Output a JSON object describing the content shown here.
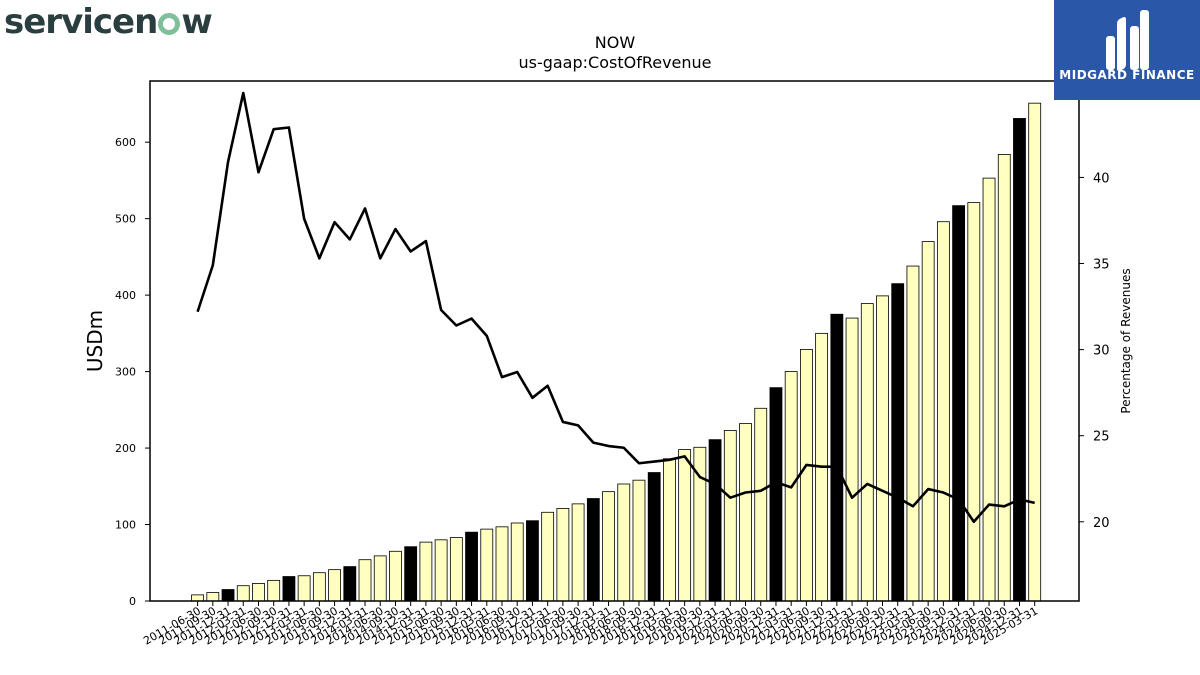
{
  "branding": {
    "logo_left": "servicenow",
    "logo_right": "MIDGARD FINANCE"
  },
  "chart_data": {
    "type": "bar",
    "title": "NOW",
    "subtitle": "us-gaap:CostOfRevenue",
    "ylabel": "USDm",
    "y2label": "Percentage of Revenues",
    "ylim": [
      0,
      680
    ],
    "y2lim": [
      15.4,
      45.6
    ],
    "yticks": [
      0,
      100,
      200,
      300,
      400,
      500,
      600
    ],
    "y2ticks": [
      20,
      25,
      30,
      35,
      40,
      45
    ],
    "grid": false,
    "colors": {
      "quarter_bar": "#ffffc0",
      "fiscal_year_bar": "#000000",
      "bar_edge": "#000000",
      "ratio_line": "#000000"
    },
    "categories": [
      "2011-06-30",
      "2011-09-30",
      "2011-12-31",
      "2012-03-31",
      "2012-06-30",
      "2012-09-30",
      "2012-12-31",
      "2013-03-31",
      "2013-06-30",
      "2013-09-30",
      "2013-12-31",
      "2014-03-31",
      "2014-06-30",
      "2014-09-30",
      "2014-12-31",
      "2015-03-31",
      "2015-06-30",
      "2015-09-30",
      "2015-12-31",
      "2016-03-31",
      "2016-06-30",
      "2016-09-30",
      "2016-12-31",
      "2017-03-31",
      "2017-06-30",
      "2017-09-30",
      "2017-12-31",
      "2018-03-31",
      "2018-06-30",
      "2018-09-30",
      "2018-12-31",
      "2019-03-31",
      "2019-06-30",
      "2019-09-30",
      "2019-12-31",
      "2020-03-31",
      "2020-06-30",
      "2020-09-30",
      "2020-12-31",
      "2021-03-31",
      "2021-06-30",
      "2021-09-30",
      "2021-12-31",
      "2022-03-31",
      "2022-06-30",
      "2022-09-30",
      "2022-12-31",
      "2023-03-31",
      "2023-06-30",
      "2023-09-30",
      "2023-12-31",
      "2024-03-31",
      "2024-06-30",
      "2024-09-30",
      "2024-12-31",
      "2025-03-31"
    ],
    "series": [
      {
        "type": "bar",
        "axis": "left",
        "values": [
          8,
          11,
          15,
          20,
          23,
          27,
          32,
          33,
          37,
          41,
          45,
          54,
          59,
          65,
          71,
          77,
          80,
          83,
          90,
          94,
          97,
          102,
          105,
          116,
          121,
          127,
          134,
          143,
          153,
          158,
          168,
          186,
          198,
          201,
          211,
          223,
          232,
          252,
          279,
          300,
          329,
          350,
          375,
          370,
          389,
          399,
          415,
          438,
          470,
          496,
          517,
          521,
          553,
          584,
          631,
          651
        ],
        "fiscal_year_end": [
          false,
          false,
          true,
          false,
          false,
          false,
          true,
          false,
          false,
          false,
          true,
          false,
          false,
          false,
          true,
          false,
          false,
          false,
          true,
          false,
          false,
          false,
          true,
          false,
          false,
          false,
          true,
          false,
          false,
          false,
          true,
          false,
          false,
          false,
          true,
          false,
          false,
          false,
          true,
          false,
          false,
          false,
          true,
          false,
          false,
          false,
          true,
          false,
          false,
          false,
          true,
          false,
          false,
          false,
          true,
          false
        ]
      },
      {
        "type": "line",
        "axis": "right",
        "values": [
          32.2,
          34.9,
          40.9,
          44.9,
          40.3,
          42.8,
          42.9,
          37.6,
          35.3,
          37.4,
          36.4,
          38.2,
          35.3,
          37.0,
          35.7,
          36.3,
          32.3,
          31.4,
          31.8,
          30.8,
          28.4,
          28.7,
          27.2,
          27.9,
          25.8,
          25.6,
          24.6,
          24.4,
          24.3,
          23.4,
          23.5,
          23.6,
          23.8,
          22.6,
          22.2,
          21.4,
          21.7,
          21.8,
          22.3,
          22.0,
          23.3,
          23.2,
          23.2,
          21.4,
          22.2,
          21.8,
          21.4,
          20.9,
          21.9,
          21.7,
          21.3,
          20.0,
          21.0,
          20.9,
          21.3,
          21.1
        ]
      }
    ]
  }
}
